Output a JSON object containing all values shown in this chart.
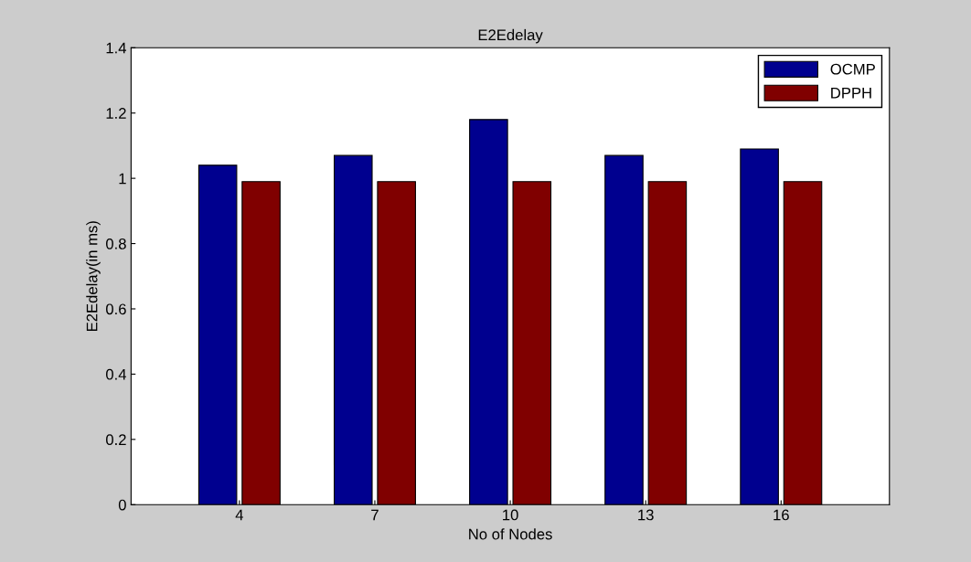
{
  "chart_data": {
    "type": "bar",
    "title": "E2Edelay",
    "xlabel": "No of Nodes",
    "ylabel": "E2Edelay(in ms)",
    "categories": [
      "4",
      "7",
      "10",
      "13",
      "16"
    ],
    "series": [
      {
        "name": "OCMP",
        "color": "#00008f",
        "values": [
          1.04,
          1.07,
          1.18,
          1.07,
          1.09
        ]
      },
      {
        "name": "DPPH",
        "color": "#800000",
        "values": [
          0.99,
          0.99,
          0.99,
          0.99,
          0.99
        ]
      }
    ],
    "ylim": [
      0,
      1.4
    ],
    "yticks": [
      0,
      0.2,
      0.4,
      0.6,
      0.8,
      1,
      1.2,
      1.4
    ],
    "grid": false,
    "legend": "top right"
  }
}
